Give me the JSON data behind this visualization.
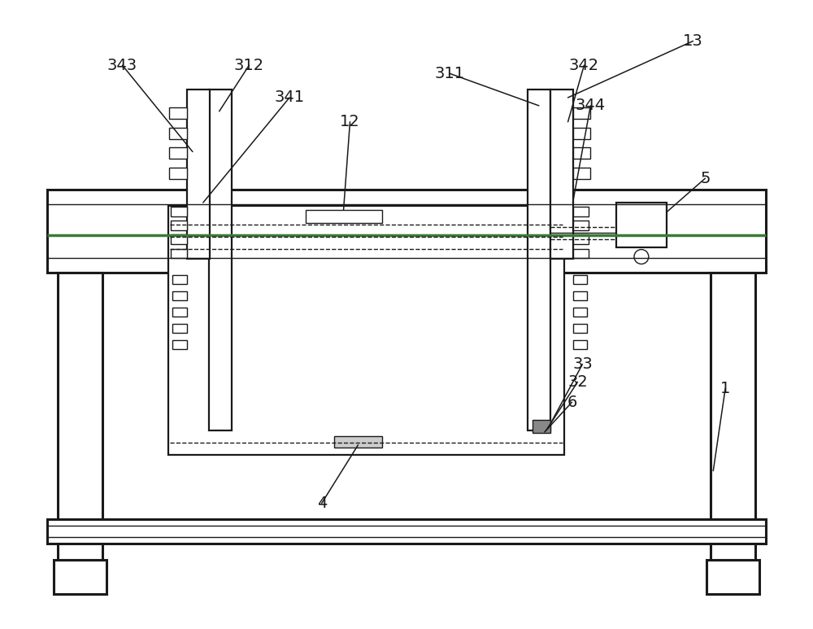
{
  "bg_color": "#ffffff",
  "line_color": "#1a1a1a",
  "green_line_color": "#3a7a3a",
  "fig_width": 10.0,
  "fig_height": 7.73,
  "dpi": 100
}
